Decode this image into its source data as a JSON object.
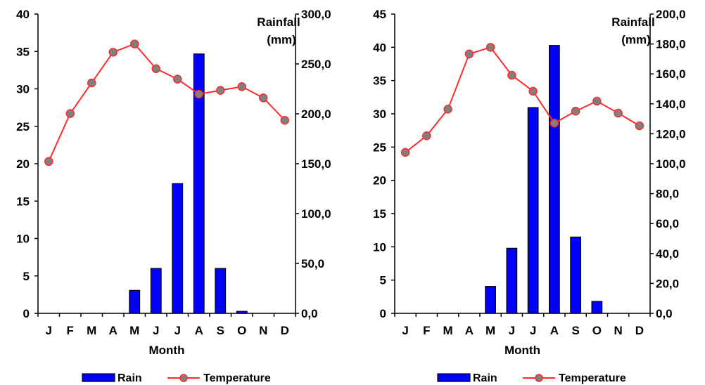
{
  "colors": {
    "rain": "#0000ff",
    "temperature": "#ff2a2a",
    "marker": "#808080"
  },
  "chart_data": [
    {
      "type": "bar+line",
      "categories": [
        "J",
        "F",
        "M",
        "A",
        "M",
        "J",
        "J",
        "A",
        "S",
        "O",
        "N",
        "D"
      ],
      "xlabel": "Month",
      "y2label_line1": "Rainfall",
      "y2label_line2": "(mm)",
      "y_left": {
        "lim": [
          0,
          40
        ],
        "ticks": [
          "0",
          "5",
          "10",
          "15",
          "20",
          "25",
          "30",
          "35",
          "40"
        ]
      },
      "y_right": {
        "lim": [
          0,
          300
        ],
        "ticks": [
          "0,0",
          "50,0",
          "100,0",
          "150,0",
          "200,0",
          "250,0",
          "300,0"
        ]
      },
      "series": [
        {
          "name": "Rain",
          "type": "bar",
          "axis": "right",
          "values": [
            0,
            0,
            0,
            0,
            23,
            45,
            130,
            260,
            45,
            2,
            0,
            0
          ]
        },
        {
          "name": "Temperature",
          "type": "line",
          "axis": "left",
          "values": [
            20.3,
            26.7,
            30.8,
            34.9,
            36.0,
            32.7,
            31.3,
            29.3,
            29.8,
            30.3,
            28.8,
            25.8
          ]
        }
      ],
      "legend": {
        "rain": "Rain",
        "temperature": "Temperature"
      }
    },
    {
      "type": "bar+line",
      "categories": [
        "J",
        "F",
        "M",
        "A",
        "M",
        "J",
        "J",
        "A",
        "S",
        "O",
        "N",
        "D"
      ],
      "xlabel": "Month",
      "y2label_line1": "Rainfall",
      "y2label_line2": "(mm)",
      "y_left": {
        "lim": [
          0,
          45
        ],
        "ticks": [
          "0",
          "5",
          "10",
          "15",
          "20",
          "25",
          "30",
          "35",
          "40",
          "45"
        ]
      },
      "y_right": {
        "lim": [
          0,
          200
        ],
        "ticks": [
          "0,0",
          "20,0",
          "40,0",
          "60,0",
          "80,0",
          "100,0",
          "120,0",
          "140,0",
          "160,0",
          "180,0",
          "200,0"
        ]
      },
      "series": [
        {
          "name": "Rain",
          "type": "bar",
          "axis": "right",
          "values": [
            0,
            0,
            0,
            0,
            18,
            43.5,
            137.5,
            179,
            51,
            8,
            0,
            0
          ]
        },
        {
          "name": "Temperature",
          "type": "line",
          "axis": "left",
          "values": [
            24.2,
            26.7,
            30.7,
            39.0,
            40.0,
            35.8,
            33.4,
            28.6,
            30.4,
            31.9,
            30.1,
            28.2
          ]
        }
      ],
      "legend": {
        "rain": "Rain",
        "temperature": "Temperature"
      }
    }
  ]
}
